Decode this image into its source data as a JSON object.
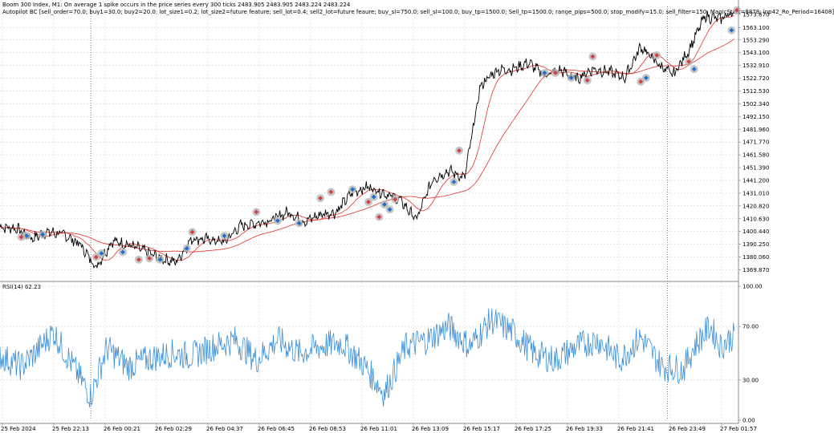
{
  "header": {
    "symbol_line": "Boom 300 Index, M1:  On average 1 spike occurs in the price series every 300 ticks  2483.905 2483.905 2483.224 2483.224",
    "ea_line": "Autopilot BC [sell_order=70.0; buy1=30.0; buy2=20.0; lot_size1=0.2; lot_size2=future feature; sell_lot=0.4; sell2_lot=future feaure; buy_sl=750.0; sell_sl=100.0; buy_tp=1500.0; Sell_tp=1500.0; range_pips=500.0; stop_modify=15.0; sell_filter=150; MagicStart=8878; inp42_Ro_Period=16408]"
  },
  "rsi_header": "RSI(14) 62.23",
  "colors": {
    "price": "#000000",
    "ma_fast": "#e0302a",
    "ma_slow": "#e0302a",
    "rsi": "#3a8fd8",
    "grid": "#c8c8c8",
    "buy_marker": "#1a6fcf",
    "sell_marker": "#d04040",
    "marker_halo": "#b8b8b8"
  },
  "price_axis": {
    "ticks": [
      "1573.670",
      "1563.100",
      "1553.290",
      "1543.100",
      "1532.910",
      "1522.720",
      "1512.530",
      "1502.340",
      "1492.150",
      "1481.960",
      "1471.770",
      "1461.580",
      "1451.390",
      "1441.200",
      "1431.010",
      "1420.820",
      "1410.630",
      "1400.440",
      "1390.250",
      "1380.060",
      "1369.870"
    ],
    "min": 1362.5,
    "max": 1580.0
  },
  "rsi_axis": {
    "ticks": [
      "100.00",
      "70.00",
      "30.00",
      "0.00"
    ],
    "values": [
      100,
      70,
      30,
      0
    ]
  },
  "time_axis": [
    "25 Feb 2024",
    "25 Feb 22:13",
    "26 Feb 00:21",
    "26 Feb 02:29",
    "26 Feb 04:37",
    "26 Feb 06:45",
    "26 Feb 08:53",
    "26 Feb 11:01",
    "26 Feb 13:09",
    "26 Feb 15:17",
    "26 Feb 17:25",
    "26 Feb 19:33",
    "26 Feb 21:41",
    "26 Feb 23:49",
    "27 Feb 01:57"
  ],
  "chart_data": {
    "type": "line",
    "price_waypoints": [
      [
        0,
        1404
      ],
      [
        3,
        1403
      ],
      [
        6,
        1395
      ],
      [
        9,
        1400
      ],
      [
        12,
        1398
      ],
      [
        15,
        1390
      ],
      [
        18,
        1372
      ],
      [
        21,
        1393
      ],
      [
        24,
        1390
      ],
      [
        27,
        1385
      ],
      [
        30,
        1379
      ],
      [
        33,
        1376
      ],
      [
        36,
        1395
      ],
      [
        39,
        1394
      ],
      [
        42,
        1392
      ],
      [
        45,
        1405
      ],
      [
        48,
        1407
      ],
      [
        51,
        1410
      ],
      [
        54,
        1416
      ],
      [
        57,
        1408
      ],
      [
        60,
        1414
      ],
      [
        63,
        1416
      ],
      [
        66,
        1432
      ],
      [
        69,
        1436
      ],
      [
        72,
        1431
      ],
      [
        75,
        1425
      ],
      [
        78,
        1410
      ],
      [
        81,
        1442
      ],
      [
        84,
        1449
      ],
      [
        87,
        1443
      ],
      [
        90,
        1517
      ],
      [
        93,
        1529
      ],
      [
        96,
        1530
      ],
      [
        99,
        1535
      ],
      [
        102,
        1525
      ],
      [
        105,
        1529
      ],
      [
        108,
        1522
      ],
      [
        111,
        1530
      ],
      [
        114,
        1528
      ],
      [
        117,
        1523
      ],
      [
        120,
        1548
      ],
      [
        123,
        1535
      ],
      [
        126,
        1525
      ],
      [
        129,
        1545
      ],
      [
        132,
        1572
      ],
      [
        135,
        1570
      ],
      [
        137,
        1575
      ]
    ],
    "n_points": 138,
    "rsi_waypoints": [
      [
        0,
        48
      ],
      [
        4,
        40
      ],
      [
        7,
        52
      ],
      [
        10,
        66
      ],
      [
        13,
        45
      ],
      [
        17,
        18
      ],
      [
        20,
        54
      ],
      [
        24,
        40
      ],
      [
        28,
        46
      ],
      [
        32,
        50
      ],
      [
        36,
        48
      ],
      [
        40,
        55
      ],
      [
        44,
        60
      ],
      [
        48,
        45
      ],
      [
        52,
        60
      ],
      [
        56,
        50
      ],
      [
        60,
        55
      ],
      [
        64,
        58
      ],
      [
        68,
        42
      ],
      [
        72,
        20
      ],
      [
        76,
        55
      ],
      [
        80,
        60
      ],
      [
        84,
        70
      ],
      [
        88,
        55
      ],
      [
        92,
        75
      ],
      [
        96,
        66
      ],
      [
        100,
        50
      ],
      [
        104,
        45
      ],
      [
        108,
        55
      ],
      [
        112,
        60
      ],
      [
        116,
        45
      ],
      [
        120,
        62
      ],
      [
        124,
        40
      ],
      [
        128,
        38
      ],
      [
        130,
        55
      ],
      [
        133,
        70
      ],
      [
        135,
        55
      ],
      [
        137,
        62
      ]
    ],
    "buy_markers": [
      [
        5,
        1397
      ],
      [
        8,
        1398
      ],
      [
        19,
        1383
      ],
      [
        23,
        1384
      ],
      [
        30,
        1378
      ],
      [
        35,
        1387
      ],
      [
        42,
        1397
      ],
      [
        52,
        1409
      ],
      [
        56,
        1407
      ],
      [
        66,
        1434
      ],
      [
        70,
        1428
      ],
      [
        72,
        1422
      ],
      [
        73,
        1418
      ],
      [
        85,
        1440
      ],
      [
        102,
        1527
      ],
      [
        107,
        1523
      ],
      [
        121,
        1523
      ],
      [
        130,
        1530
      ],
      [
        137,
        1561
      ]
    ],
    "sell_markers": [
      [
        4,
        1396
      ],
      [
        18,
        1380
      ],
      [
        26,
        1378
      ],
      [
        28,
        1379
      ],
      [
        36,
        1400
      ],
      [
        48,
        1416
      ],
      [
        60,
        1427
      ],
      [
        62,
        1432
      ],
      [
        69,
        1424
      ],
      [
        71,
        1412
      ],
      [
        74,
        1426
      ],
      [
        86,
        1465
      ],
      [
        104,
        1527
      ],
      [
        110,
        1521
      ],
      [
        111,
        1540
      ],
      [
        120,
        1520
      ],
      [
        123,
        1541
      ],
      [
        129,
        1536
      ],
      [
        138,
        1577
      ]
    ],
    "session_dividers": [
      17,
      125
    ]
  }
}
